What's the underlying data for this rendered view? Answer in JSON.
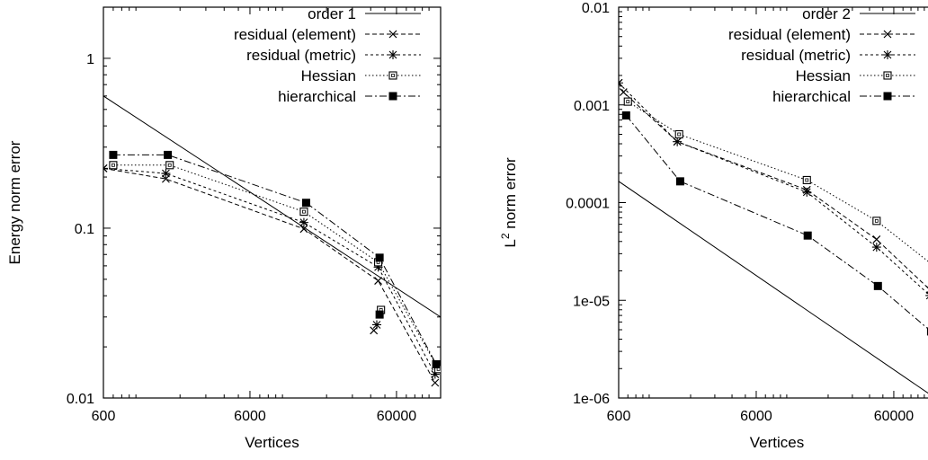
{
  "chart_data": [
    {
      "type": "line",
      "xscale": "log",
      "yscale": "log",
      "xlim": [
        600,
        120000
      ],
      "ylim": [
        0.01,
        2
      ],
      "xticks": [
        "600",
        "6000",
        "60000"
      ],
      "xtick_values": [
        600,
        6000,
        60000
      ],
      "yticks": [
        "0.01",
        "0.1",
        "1"
      ],
      "ytick_values": [
        0.01,
        0.1,
        1
      ],
      "xlabel": "Vertices",
      "ylabel": "Energy norm error",
      "grid": false,
      "legend_position": "top-right",
      "series": [
        {
          "name": "order 1",
          "style": "solid",
          "marker": "none",
          "x": [
            600,
            120000
          ],
          "y": [
            0.6,
            0.03
          ]
        },
        {
          "name": "residual (element)",
          "style": "dashed",
          "marker": "x",
          "x": [
            600,
            1600,
            14000,
            45000,
            110000
          ],
          "y": [
            0.225,
            0.195,
            0.099,
            0.049,
            0.0123
          ]
        },
        {
          "name": "residual (metric)",
          "style": "dashed-fine",
          "marker": "star",
          "x": [
            600,
            1600,
            14000,
            45000,
            110000
          ],
          "y": [
            0.225,
            0.21,
            0.108,
            0.059,
            0.0138
          ]
        },
        {
          "name": "Hessian",
          "style": "dotted",
          "marker": "open-square",
          "x": [
            700,
            1700,
            14000,
            45000,
            116000
          ],
          "y": [
            0.235,
            0.235,
            0.125,
            0.063,
            0.0148
          ]
        },
        {
          "name": "hierarchical",
          "style": "dash-dot",
          "marker": "filled-square",
          "x": [
            700,
            1650,
            14500,
            46000,
            112000
          ],
          "y": [
            0.27,
            0.27,
            0.141,
            0.067,
            0.0158
          ]
        }
      ],
      "extra_points": [
        {
          "series": "residual (element)",
          "x": 42000,
          "y": 0.025
        },
        {
          "series": "residual (metric)",
          "x": 44000,
          "y": 0.027
        },
        {
          "series": "Hessian",
          "x": 47000,
          "y": 0.033
        },
        {
          "series": "hierarchical",
          "x": 46000,
          "y": 0.031
        }
      ]
    },
    {
      "type": "line",
      "xscale": "log",
      "yscale": "log",
      "xlim": [
        600,
        120000
      ],
      "ylim": [
        1e-06,
        0.01
      ],
      "xticks": [
        "600",
        "6000",
        "60000"
      ],
      "xtick_values": [
        600,
        6000,
        60000
      ],
      "yticks": [
        "1e-06",
        "1e-05",
        "0.0001",
        "0.001",
        "0.01"
      ],
      "ytick_values": [
        1e-06,
        1e-05,
        0.0001,
        0.001,
        0.01
      ],
      "xlabel": "Vertices",
      "ylabel": "L",
      "ylabel_sup": "2",
      "ylabel_suffix": " norm error",
      "grid": false,
      "legend_position": "top-right",
      "series": [
        {
          "name": "order 2",
          "style": "solid",
          "marker": "none",
          "x": [
            600,
            120000
          ],
          "y": [
            0.000165,
            1e-06
          ]
        },
        {
          "name": "residual (element)",
          "style": "dashed",
          "marker": "x",
          "x": [
            600,
            650,
            1600,
            14000,
            45000,
            110000
          ],
          "y": [
            0.00168,
            0.00135,
            0.00042,
            0.000135,
            4.2e-05,
            1.28e-05
          ]
        },
        {
          "name": "residual (metric)",
          "style": "dashed-fine",
          "marker": "star",
          "x": [
            600,
            1600,
            14000,
            45000,
            110000
          ],
          "y": [
            0.00168,
            0.00042,
            0.000128,
            3.5e-05,
            1.12e-05
          ]
        },
        {
          "name": "Hessian",
          "style": "dotted",
          "marker": "open-square",
          "x": [
            700,
            1650,
            14000,
            45000,
            116000
          ],
          "y": [
            0.00108,
            0.0005,
            0.00017,
            6.5e-05,
            2.28e-05
          ]
        },
        {
          "name": "hierarchical",
          "style": "dash-dot",
          "marker": "filled-square",
          "x": [
            680,
            1680,
            14200,
            46000,
            112000
          ],
          "y": [
            0.00078,
            0.000165,
            4.6e-05,
            1.4e-05,
            4.8e-06
          ]
        }
      ]
    }
  ]
}
